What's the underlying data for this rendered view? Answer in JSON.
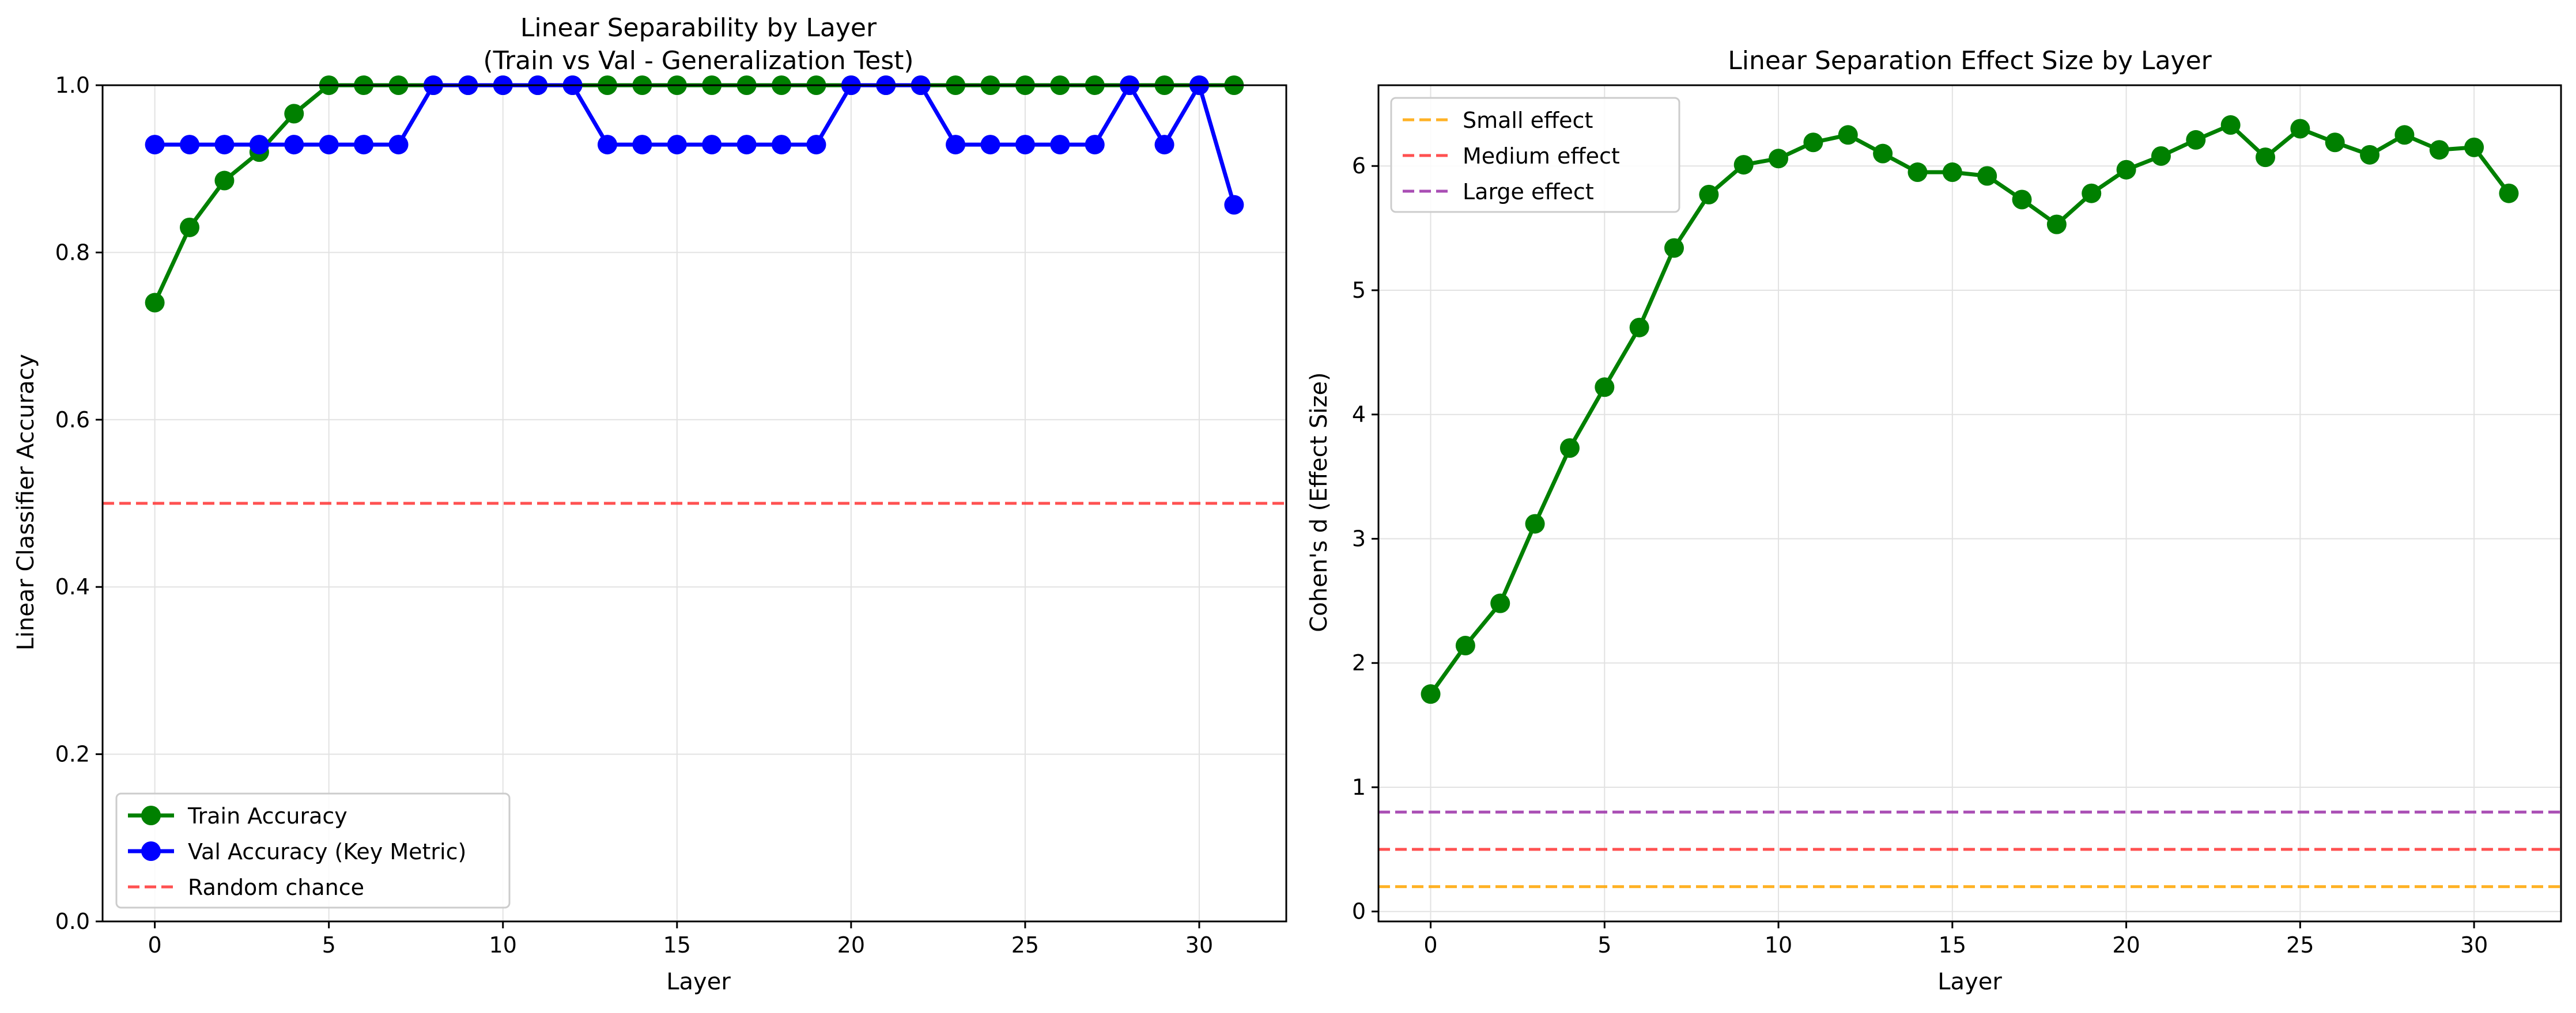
{
  "chart_data": [
    {
      "type": "line",
      "title": "Linear Separability by Layer\n(Train vs Val - Generalization Test)",
      "xlabel": "Layer",
      "ylabel": "Linear Classifier Accuracy",
      "xlim": [
        -1.5,
        32.5
      ],
      "ylim": [
        0.0,
        1.0
      ],
      "xticks": [
        0,
        5,
        10,
        15,
        20,
        25,
        30
      ],
      "yticks": [
        0.0,
        0.2,
        0.4,
        0.6,
        0.8,
        1.0
      ],
      "ytick_labels": [
        "0.0",
        "0.2",
        "0.4",
        "0.6",
        "0.8",
        "1.0"
      ],
      "grid": true,
      "legend_position": "lower-left",
      "x": [
        0,
        1,
        2,
        3,
        4,
        5,
        6,
        7,
        8,
        9,
        10,
        11,
        12,
        13,
        14,
        15,
        16,
        17,
        18,
        19,
        20,
        21,
        22,
        23,
        24,
        25,
        26,
        27,
        28,
        29,
        30,
        31
      ],
      "series": [
        {
          "name": "Train Accuracy",
          "color": "#008000",
          "style": "line-marker",
          "values": [
            0.74,
            0.83,
            0.886,
            0.92,
            0.966,
            1.0,
            1.0,
            1.0,
            1.0,
            1.0,
            1.0,
            1.0,
            1.0,
            1.0,
            1.0,
            1.0,
            1.0,
            1.0,
            1.0,
            1.0,
            1.0,
            1.0,
            1.0,
            1.0,
            1.0,
            1.0,
            1.0,
            1.0,
            1.0,
            1.0,
            1.0,
            1.0
          ]
        },
        {
          "name": "Val Accuracy (Key Metric)",
          "color": "#0000ff",
          "style": "line-marker",
          "values": [
            0.929,
            0.929,
            0.929,
            0.929,
            0.929,
            0.929,
            0.929,
            0.929,
            1.0,
            1.0,
            1.0,
            1.0,
            1.0,
            0.929,
            0.929,
            0.929,
            0.929,
            0.929,
            0.929,
            0.929,
            1.0,
            1.0,
            1.0,
            0.929,
            0.929,
            0.929,
            0.929,
            0.929,
            1.0,
            0.929,
            1.0,
            0.857
          ]
        }
      ],
      "reference_lines": [
        {
          "name": "Random chance",
          "y": 0.5,
          "color": "#ff3333",
          "style": "dashed"
        }
      ]
    },
    {
      "type": "line",
      "title": "Linear Separation Effect Size by Layer",
      "xlabel": "Layer",
      "ylabel": "Cohen's d (Effect Size)",
      "xlim": [
        -1.5,
        32.5
      ],
      "ylim": [
        -0.08,
        6.65
      ],
      "xticks": [
        0,
        5,
        10,
        15,
        20,
        25,
        30
      ],
      "yticks": [
        0,
        1,
        2,
        3,
        4,
        5,
        6
      ],
      "ytick_labels": [
        "0",
        "1",
        "2",
        "3",
        "4",
        "5",
        "6"
      ],
      "grid": true,
      "legend_position": "top-left",
      "x": [
        0,
        1,
        2,
        3,
        4,
        5,
        6,
        7,
        8,
        9,
        10,
        11,
        12,
        13,
        14,
        15,
        16,
        17,
        18,
        19,
        20,
        21,
        22,
        23,
        24,
        25,
        26,
        27,
        28,
        29,
        30,
        31
      ],
      "series": [
        {
          "name": "",
          "color": "#008000",
          "style": "line-marker",
          "values": [
            1.75,
            2.14,
            2.48,
            3.12,
            3.73,
            4.22,
            4.7,
            5.34,
            5.77,
            6.01,
            6.06,
            6.19,
            6.25,
            6.1,
            5.95,
            5.95,
            5.92,
            5.73,
            5.53,
            5.78,
            5.97,
            6.08,
            6.21,
            6.33,
            6.07,
            6.3,
            6.19,
            6.09,
            6.25,
            6.13,
            6.15,
            5.78
          ]
        }
      ],
      "reference_lines": [
        {
          "name": "Small effect",
          "y": 0.2,
          "color": "#ffa500",
          "style": "dashed"
        },
        {
          "name": "Medium effect",
          "y": 0.5,
          "color": "#ff3333",
          "style": "dashed"
        },
        {
          "name": "Large effect",
          "y": 0.8,
          "color": "#9b30a8",
          "style": "dashed"
        }
      ]
    }
  ]
}
